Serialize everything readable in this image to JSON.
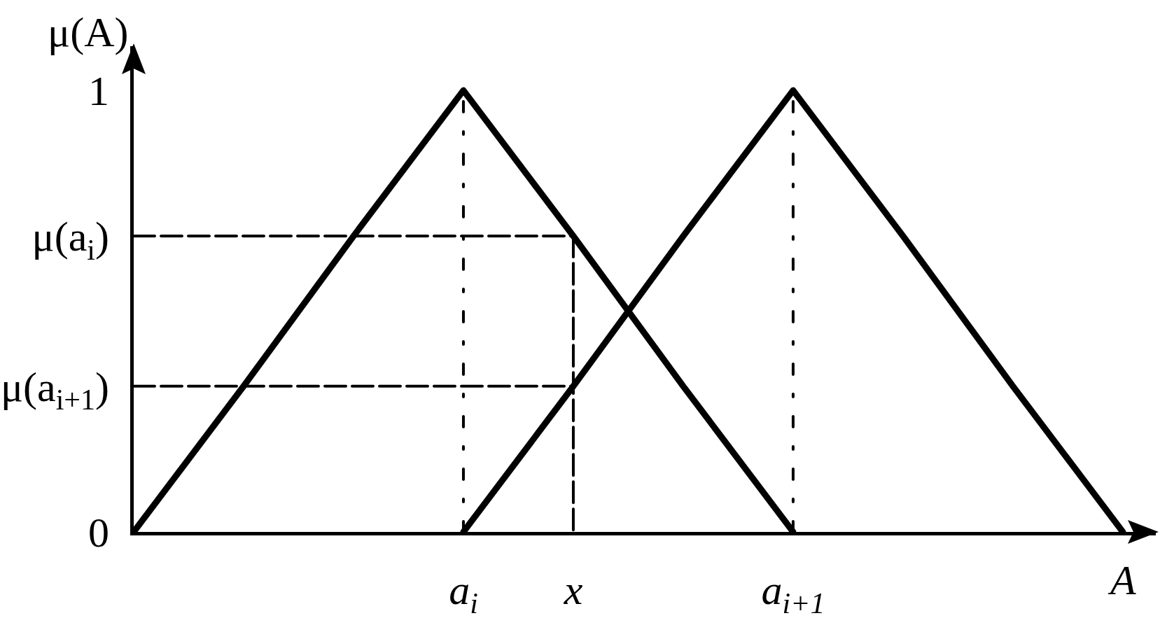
{
  "chart_data": {
    "type": "line",
    "ylabel": "μ(A)",
    "xlabel": "A",
    "categories": [
      null,
      null,
      null,
      "a$_{i}$",
      "x",
      null,
      "a$_{i+1}$",
      null,
      null,
      null
    ],
    "ylim": [
      0,
      1.1
    ],
    "yticks": [
      0,
      {
        "value": 0.33,
        "label": "μ(a$_{i+1}$)"
      },
      {
        "value": 0.67,
        "label": "μ(a$_{i}$)"
      },
      1
    ],
    "series": [
      {
        "color": "#000000",
        "values": [
          0.67,
          0.67,
          0.67,
          0.67,
          0.67,
          null,
          null,
          null,
          null,
          null
        ],
        "line_style": "dashed"
      },
      {
        "color": "#000000",
        "values": [
          0.33,
          0.33,
          0.33,
          0.33,
          0.33,
          null,
          null,
          null,
          null,
          null
        ],
        "line_style": "dashed"
      },
      {
        "color": "#000000",
        "x": [
          "x",
          "x"
        ],
        "values": [
          0.67,
          0
        ],
        "line_style": "dashed"
      },
      {
        "color": "#000000",
        "x": [
          "a$_{i}$",
          "a$_{i}$"
        ],
        "values": [
          0,
          1
        ],
        "line_style": "dotted"
      },
      {
        "color": "#000000",
        "x": [
          "a$_{i+1}$",
          "a$_{i+1}$"
        ],
        "values": [
          0,
          1
        ],
        "line_style": "dotted"
      },
      {
        "color": "#000000",
        "values": [
          0,
          0.33,
          0.67,
          1,
          0.67,
          0.33,
          0,
          null,
          null,
          null
        ],
        "line_style": "solid"
      },
      {
        "color": "#000000",
        "values": [
          null,
          null,
          null,
          0,
          0.33,
          0.67,
          1,
          0.67,
          0.33,
          0
        ],
        "line_style": "solid"
      }
    ]
  }
}
